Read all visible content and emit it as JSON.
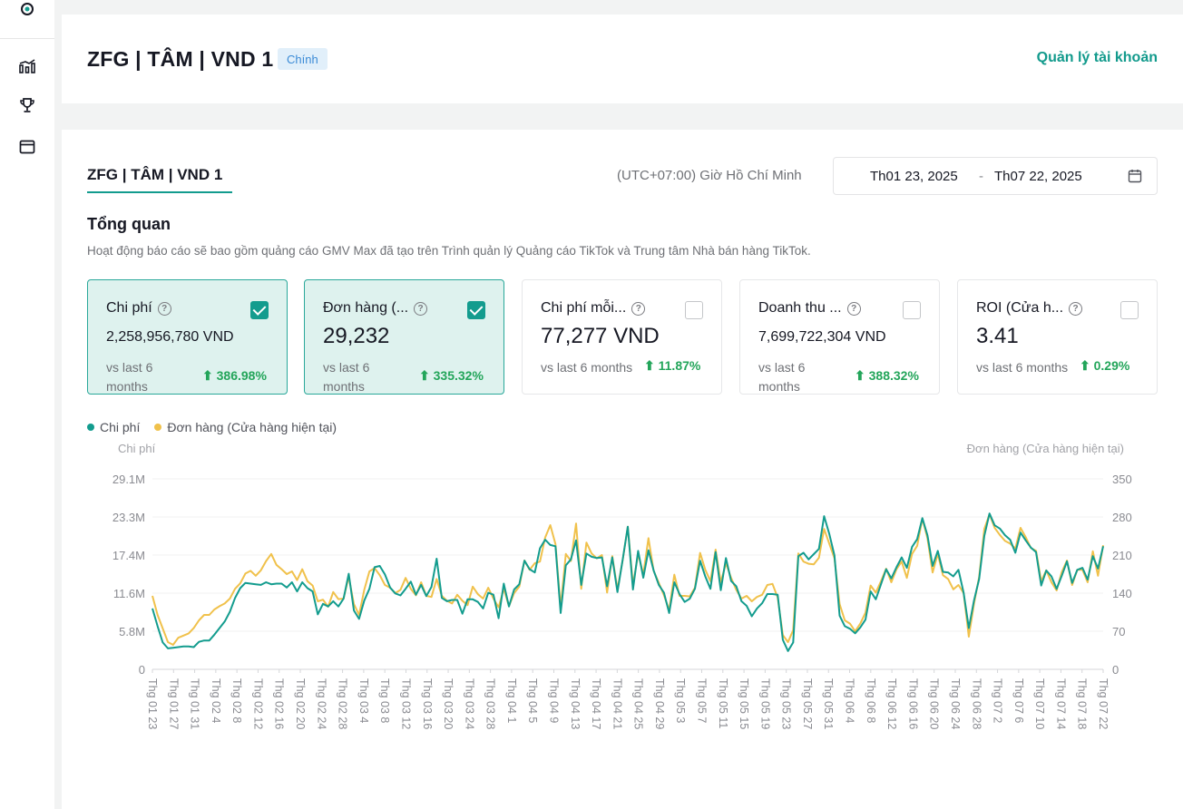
{
  "account": {
    "title": "ZFG | TÂM | VND 1",
    "badge": "Chính",
    "manage_link": "Quản lý tài khoản"
  },
  "sidebar": {
    "icons": [
      "medal-icon",
      "bar-chart-icon",
      "trophy-icon",
      "window-icon"
    ]
  },
  "tab": {
    "label": "ZFG | TÂM | VND 1"
  },
  "timezone": "(UTC+07:00) Giờ Hồ Chí Minh",
  "date_range": {
    "start": "Th01 23, 2025",
    "separator": "-",
    "end": "Th07 22, 2025"
  },
  "overview": {
    "title": "Tổng quan",
    "description": "Hoạt động báo cáo sẽ bao gồm quảng cáo GMV Max đã tạo trên Trình quản lý Quảng cáo TikTok và Trung tâm Nhà bán hàng TikTok."
  },
  "metrics": [
    {
      "label": "Chi phí",
      "value": "2,258,956,780 VND",
      "vs": "vs last 6 months",
      "change": "386.98%",
      "checked": true
    },
    {
      "label": "Đơn hàng (...",
      "value": "29,232",
      "vs": "vs last 6 months",
      "change": "335.32%",
      "checked": true
    },
    {
      "label": "Chi phí mỗi...",
      "value": "77,277 VND",
      "vs": "vs last 6 months",
      "change": "11.87%",
      "checked": false
    },
    {
      "label": "Doanh thu ...",
      "value": "7,699,722,304 VND",
      "vs": "vs last 6 months",
      "change": "388.32%",
      "checked": false
    },
    {
      "label": "ROI (Cửa h...",
      "value": "3.41",
      "vs": "vs last 6 months",
      "change": "0.29%",
      "checked": false
    }
  ],
  "colors": {
    "accent": "#139c8e",
    "series_cost": "#139c8e",
    "series_orders": "#f0c14b",
    "positive": "#23a55a"
  },
  "chart_data": {
    "type": "line",
    "legend_position": "top-left",
    "grid": true,
    "left_axis": {
      "label": "Chi phí",
      "ticks": [
        "0",
        "5.8M",
        "11.6M",
        "17.4M",
        "23.3M",
        "29.1M"
      ],
      "range": [
        0,
        29.1
      ]
    },
    "right_axis": {
      "label": "Đơn hàng (Cửa hàng hiện tại)",
      "ticks": [
        "0",
        "70",
        "140",
        "210",
        "280",
        "350"
      ],
      "range": [
        0,
        350
      ]
    },
    "x_tick_labels": [
      "Thg 01 23",
      "Thg 01 27",
      "Thg 01 31",
      "Thg 02 4",
      "Thg 02 8",
      "Thg 02 12",
      "Thg 02 16",
      "Thg 02 20",
      "Thg 02 24",
      "Thg 02 28",
      "Thg 03 4",
      "Thg 03 8",
      "Thg 03 12",
      "Thg 03 16",
      "Thg 03 20",
      "Thg 03 24",
      "Thg 03 28",
      "Thg 04 1",
      "Thg 04 5",
      "Thg 04 9",
      "Thg 04 13",
      "Thg 04 17",
      "Thg 04 21",
      "Thg 04 25",
      "Thg 04 29",
      "Thg 05 3",
      "Thg 05 7",
      "Thg 05 11",
      "Thg 05 15",
      "Thg 05 19",
      "Thg 05 23",
      "Thg 05 27",
      "Thg 05 31",
      "Thg 06 4",
      "Thg 06 8",
      "Thg 06 12",
      "Thg 06 16",
      "Thg 06 20",
      "Thg 06 24",
      "Thg 06 28",
      "Thg 07 2",
      "Thg 07 6",
      "Thg 07 10",
      "Thg 07 14",
      "Thg 07 18",
      "Thg 07 22"
    ],
    "series": [
      {
        "name": "Chi phí",
        "axis": "left",
        "unit": "M VND",
        "values": [
          9.3,
          6.6,
          4.1,
          3.2,
          3.3,
          3.4,
          3.5,
          3.5,
          3.4,
          4.2,
          4.4,
          4.4,
          5.3,
          6.3,
          7.3,
          8.8,
          10.9,
          12.4,
          13.2,
          13.1,
          13.0,
          12.9,
          13.3,
          13.0,
          13.1,
          13.1,
          12.5,
          13.3,
          11.9,
          13.3,
          12.4,
          11.9,
          8.4,
          10.0,
          9.6,
          10.4,
          9.6,
          10.8,
          14.6,
          9.0,
          7.7,
          10.5,
          12.3,
          15.6,
          15.8,
          14.5,
          12.5,
          11.6,
          11.3,
          12.3,
          13.4,
          11.4,
          12.9,
          11.2,
          12.6,
          16.9,
          10.9,
          10.4,
          10.6,
          10.6,
          8.5,
          10.7,
          10.7,
          10.3,
          9.3,
          11.7,
          11.4,
          7.8,
          13.1,
          9.6,
          12.2,
          13.0,
          16.6,
          15.3,
          14.8,
          18.5,
          19.8,
          19.0,
          18.8,
          8.6,
          15.9,
          16.8,
          19.7,
          12.9,
          17.7,
          17.2,
          17.0,
          17.1,
          12.7,
          17.1,
          11.8,
          16.7,
          21.8,
          12.2,
          18.1,
          14.0,
          18.2,
          15.1,
          12.9,
          11.7,
          8.6,
          13.3,
          11.5,
          10.3,
          10.8,
          12.3,
          16.6,
          14.2,
          12.3,
          17.9,
          12.1,
          17.0,
          13.5,
          12.7,
          10.4,
          9.7,
          8.1,
          9.3,
          10.1,
          11.5,
          11.5,
          11.4,
          4.5,
          2.8,
          4.1,
          17.3,
          17.8,
          16.8,
          17.6,
          18.4,
          23.4,
          20.7,
          17.4,
          8.2,
          6.6,
          6.2,
          5.5,
          6.4,
          7.6,
          11.9,
          10.7,
          13.0,
          15.3,
          13.9,
          15.6,
          17.1,
          15.5,
          18.7,
          19.9,
          23.1,
          20.5,
          15.8,
          18.1,
          14.9,
          14.8,
          14.2,
          15.2,
          11.7,
          6.3,
          10.5,
          13.8,
          20.4,
          23.8,
          22.0,
          21.5,
          20.5,
          19.8,
          17.8,
          20.9,
          19.7,
          18.6,
          17.9,
          12.8,
          15.1,
          14.2,
          12.3,
          14.3,
          16.5,
          13.2,
          15.2,
          15.5,
          13.7,
          17.3,
          15.4,
          18.8
        ]
      },
      {
        "name": "Đơn hàng (Cửa hàng hiện tại)",
        "axis": "right",
        "unit": "orders",
        "values": [
          135,
          100,
          75,
          50,
          45,
          58,
          62,
          66,
          76,
          90,
          100,
          100,
          110,
          116,
          121,
          130,
          148,
          158,
          176,
          181,
          172,
          182,
          199,
          212,
          192,
          184,
          175,
          180,
          164,
          184,
          162,
          154,
          125,
          128,
          115,
          142,
          129,
          130,
          170,
          120,
          100,
          146,
          180,
          186,
          173,
          155,
          150,
          140,
          146,
          168,
          148,
          136,
          160,
          135,
          133,
          166,
          135,
          126,
          121,
          137,
          126,
          118,
          152,
          138,
          130,
          150,
          130,
          114,
          148,
          116,
          140,
          152,
          200,
          183,
          195,
          198,
          242,
          265,
          230,
          114,
          212,
          199,
          268,
          148,
          233,
          213,
          204,
          210,
          141,
          208,
          147,
          200,
          262,
          155,
          212,
          175,
          241,
          181,
          159,
          136,
          109,
          174,
          135,
          135,
          134,
          150,
          214,
          183,
          162,
          220,
          160,
          195,
          168,
          146,
          130,
          135,
          125,
          133,
          137,
          155,
          157,
          132,
          63,
          50,
          72,
          213,
          198,
          194,
          193,
          205,
          258,
          231,
          204,
          120,
          90,
          84,
          70,
          84,
          104,
          154,
          141,
          162,
          185,
          160,
          184,
          198,
          168,
          212,
          227,
          277,
          241,
          178,
          212,
          173,
          166,
          147,
          155,
          140,
          60,
          120,
          170,
          258,
          285,
          260,
          247,
          236,
          231,
          222,
          260,
          243,
          223,
          218,
          162,
          182,
          160,
          145,
          179,
          200,
          155,
          183,
          183,
          160,
          217,
          172,
          228
        ]
      }
    ]
  }
}
